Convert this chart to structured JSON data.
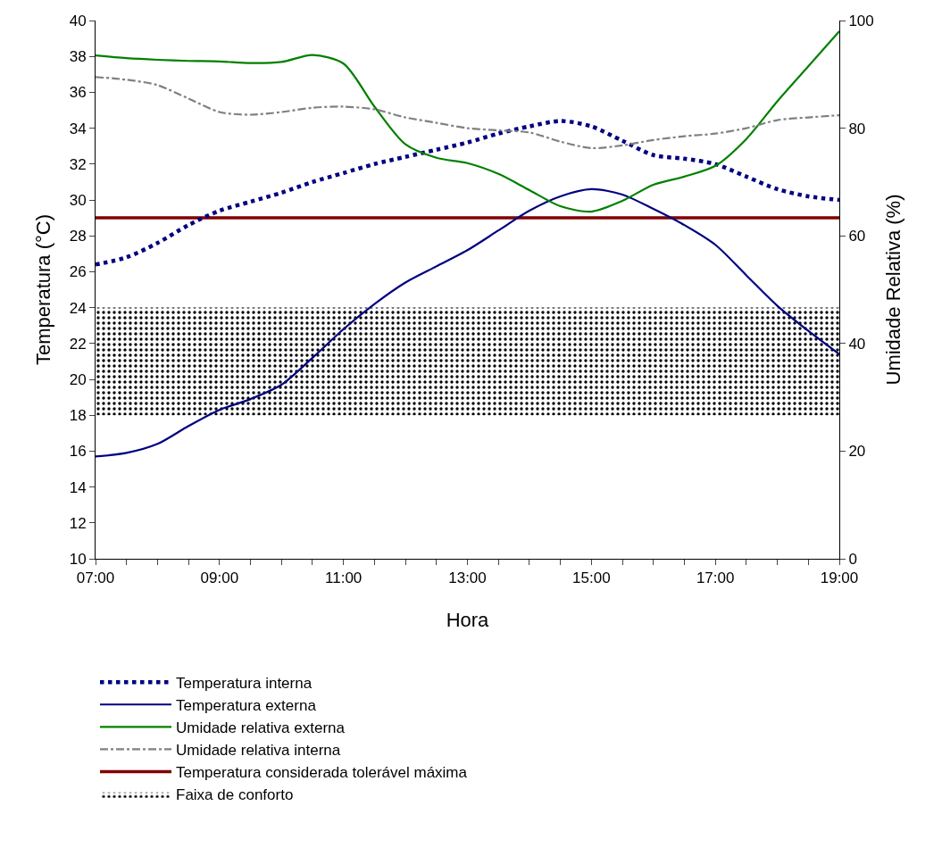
{
  "chart_data": {
    "type": "line",
    "xlabel": "Hora",
    "ylabel": "Temperatura (°C)",
    "y2label": "Umidade Relativa (%)",
    "x": [
      7,
      7.5,
      8,
      8.5,
      9,
      9.5,
      10,
      10.5,
      11,
      11.5,
      12,
      12.5,
      13,
      13.5,
      14,
      14.5,
      15,
      15.5,
      16,
      16.5,
      17,
      17.5,
      18,
      18.5,
      19
    ],
    "series": [
      {
        "name": "Temperatura interna",
        "color": "#000080",
        "line_style": "dotted",
        "values": [
          26.4,
          26.8,
          27.6,
          28.6,
          29.4,
          29.9,
          30.4,
          31.0,
          31.5,
          32.0,
          32.4,
          32.8,
          33.2,
          33.7,
          34.1,
          34.4,
          34.1,
          33.3,
          32.5,
          32.3,
          32.0,
          31.3,
          30.6,
          30.2,
          30.0
        ]
      },
      {
        "name": "Temperatura externa",
        "color": "#000080",
        "line_style": "solid",
        "values": [
          15.7,
          15.9,
          16.4,
          17.4,
          18.3,
          18.9,
          19.7,
          21.2,
          22.8,
          24.2,
          25.4,
          26.3,
          27.2,
          28.3,
          29.4,
          30.2,
          30.6,
          30.3,
          29.5,
          28.6,
          27.5,
          25.8,
          24.1,
          22.7,
          21.4
        ]
      },
      {
        "name": "Umidade relativa externa",
        "color": "#008000",
        "line_style": "solid",
        "axis": "y2",
        "values": [
          93.5,
          93,
          92.7,
          92.5,
          92.4,
          92.1,
          92.3,
          93.6,
          92,
          84,
          77,
          74.5,
          73.5,
          71.5,
          68.5,
          65.5,
          64.5,
          66.5,
          69.5,
          71,
          73,
          78,
          85,
          91.5,
          98
        ]
      },
      {
        "name": "Umidade relativa interna",
        "color": "#808080",
        "line_style": "dashdot",
        "axis": "y2",
        "values": [
          89.5,
          89,
          88,
          85.5,
          83,
          82.5,
          83,
          83.8,
          84,
          83.5,
          82,
          81,
          80,
          79.6,
          79.2,
          77.5,
          76.3,
          76.8,
          77.8,
          78.5,
          79,
          80,
          81.5,
          82,
          82.4
        ]
      }
    ],
    "ref_lines": [
      {
        "axis": "y",
        "value": 29,
        "label": "Temperatura considerada tolerável máxima",
        "color": "#800000"
      }
    ],
    "bands": [
      {
        "axis": "y",
        "from": 18,
        "to": 24,
        "label": "Faixa de conforto",
        "color": "#000000"
      }
    ],
    "xlim": [
      7,
      19
    ],
    "xticks": [
      {
        "value": 7,
        "label": "07:00"
      },
      {
        "value": 7.5,
        "label": null
      },
      {
        "value": 8,
        "label": null
      },
      {
        "value": 8.5,
        "label": null
      },
      {
        "value": 9,
        "label": "09:00"
      },
      {
        "value": 9.5,
        "label": null
      },
      {
        "value": 10,
        "label": null
      },
      {
        "value": 10.5,
        "label": null
      },
      {
        "value": 11,
        "label": "11:00"
      },
      {
        "value": 11.5,
        "label": null
      },
      {
        "value": 12,
        "label": null
      },
      {
        "value": 12.5,
        "label": null
      },
      {
        "value": 13,
        "label": "13:00"
      },
      {
        "value": 13.5,
        "label": null
      },
      {
        "value": 14,
        "label": null
      },
      {
        "value": 14.5,
        "label": null
      },
      {
        "value": 15,
        "label": "15:00"
      },
      {
        "value": 15.5,
        "label": null
      },
      {
        "value": 16,
        "label": null
      },
      {
        "value": 16.5,
        "label": null
      },
      {
        "value": 17,
        "label": "17:00"
      },
      {
        "value": 17.5,
        "label": null
      },
      {
        "value": 18,
        "label": null
      },
      {
        "value": 18.5,
        "label": null
      },
      {
        "value": 19,
        "label": "19:00"
      }
    ],
    "ylim": [
      10,
      40
    ],
    "yticks": [
      10,
      12,
      14,
      16,
      18,
      20,
      22,
      24,
      26,
      28,
      30,
      32,
      34,
      36,
      38,
      40
    ],
    "y2lim": [
      0,
      100
    ],
    "y2ticks": [
      0,
      20,
      40,
      60,
      80,
      100
    ],
    "grid": false,
    "legend": "bottom",
    "marker": "none"
  }
}
